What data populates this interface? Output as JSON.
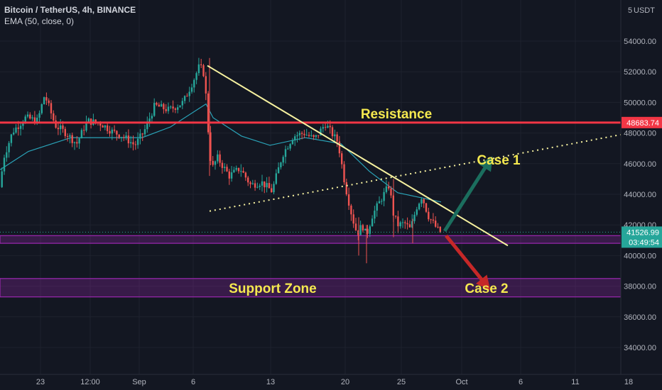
{
  "header": {
    "symbol_line": "Bitcoin / TetherUS, 4h, BINANCE",
    "indicator_line": "EMA (50, close, 0)",
    "currency_label": "USDT",
    "currency_prefix": "5"
  },
  "chart_data": {
    "type": "candlestick",
    "ylim": [
      32000,
      56000
    ],
    "yticks": [
      34000,
      36000,
      38000,
      40000,
      42000,
      44000,
      46000,
      48000,
      50000,
      52000,
      54000
    ],
    "xtick_labels": [
      "23",
      "12:00",
      "Sep",
      "6",
      "13",
      "20",
      "25",
      "Oct",
      "6",
      "11",
      "18"
    ],
    "price_path": [
      [
        0,
        44000
      ],
      [
        8,
        46500
      ],
      [
        20,
        48100
      ],
      [
        38,
        49000
      ],
      [
        55,
        48800
      ],
      [
        65,
        50500
      ],
      [
        80,
        48500
      ],
      [
        95,
        48000
      ],
      [
        110,
        47300
      ],
      [
        125,
        48800
      ],
      [
        145,
        48600
      ],
      [
        160,
        48100
      ],
      [
        175,
        47800
      ],
      [
        192,
        47200
      ],
      [
        205,
        48100
      ],
      [
        220,
        49800
      ],
      [
        240,
        49500
      ],
      [
        260,
        50000
      ],
      [
        275,
        51500
      ],
      [
        283,
        52400
      ],
      [
        290,
        51800
      ],
      [
        296,
        47600
      ],
      [
        300,
        45600
      ],
      [
        308,
        46400
      ],
      [
        325,
        45200
      ],
      [
        340,
        45700
      ],
      [
        355,
        44600
      ],
      [
        370,
        44800
      ],
      [
        385,
        44200
      ],
      [
        400,
        46600
      ],
      [
        415,
        47800
      ],
      [
        430,
        48000
      ],
      [
        445,
        47600
      ],
      [
        460,
        48600
      ],
      [
        478,
        47400
      ],
      [
        488,
        44600
      ],
      [
        498,
        42500
      ],
      [
        505,
        41400
      ],
      [
        512,
        42000
      ],
      [
        518,
        41300
      ],
      [
        526,
        42600
      ],
      [
        540,
        43800
      ],
      [
        550,
        44600
      ],
      [
        556,
        42700
      ],
      [
        562,
        42000
      ],
      [
        572,
        42100
      ],
      [
        580,
        41700
      ],
      [
        588,
        43100
      ],
      [
        596,
        43900
      ],
      [
        605,
        42600
      ],
      [
        615,
        41900
      ],
      [
        621,
        41527
      ]
    ],
    "ema_path": [
      [
        0,
        45600
      ],
      [
        40,
        46800
      ],
      [
        100,
        47700
      ],
      [
        200,
        47700
      ],
      [
        240,
        48400
      ],
      [
        290,
        49900
      ],
      [
        300,
        49000
      ],
      [
        340,
        47800
      ],
      [
        380,
        47200
      ],
      [
        430,
        47700
      ],
      [
        480,
        47300
      ],
      [
        520,
        45500
      ],
      [
        560,
        44100
      ],
      [
        621,
        43500
      ]
    ],
    "resistance": {
      "price": 48683.74,
      "label": "Resistance",
      "price_label": "48683.74"
    },
    "current": {
      "price": 41526.99,
      "price_label": "41526.99",
      "countdown": "03:49:54"
    },
    "zones": [
      {
        "name": "near-support",
        "low": 40800,
        "high": 41300,
        "label": ""
      },
      {
        "name": "support-zone",
        "low": 37300,
        "high": 38500,
        "label": "Support Zone"
      }
    ],
    "downtrend_line": {
      "start": [
        292,
        52400
      ],
      "end": [
        715,
        40650
      ]
    },
    "dotted_line": {
      "start": [
        295,
        42900
      ],
      "end": [
        875,
        47900
      ]
    },
    "scenarios": [
      {
        "label": "Case 1",
        "start": [
          626,
          41600
        ],
        "end": [
          688,
          46100
        ],
        "color": "#1b6e5e"
      },
      {
        "label": "Case 2",
        "start": [
          628,
          41300
        ],
        "end": [
          684,
          38100
        ],
        "color": "#c62828"
      }
    ],
    "colors": {
      "up": "#26a69a",
      "down": "#ef5350",
      "ema": "#2aa3b8",
      "resistance": "#f23645",
      "trend": "#f7f2a0",
      "zone": "#9c27b0",
      "annotation": "#f5e94f"
    }
  }
}
